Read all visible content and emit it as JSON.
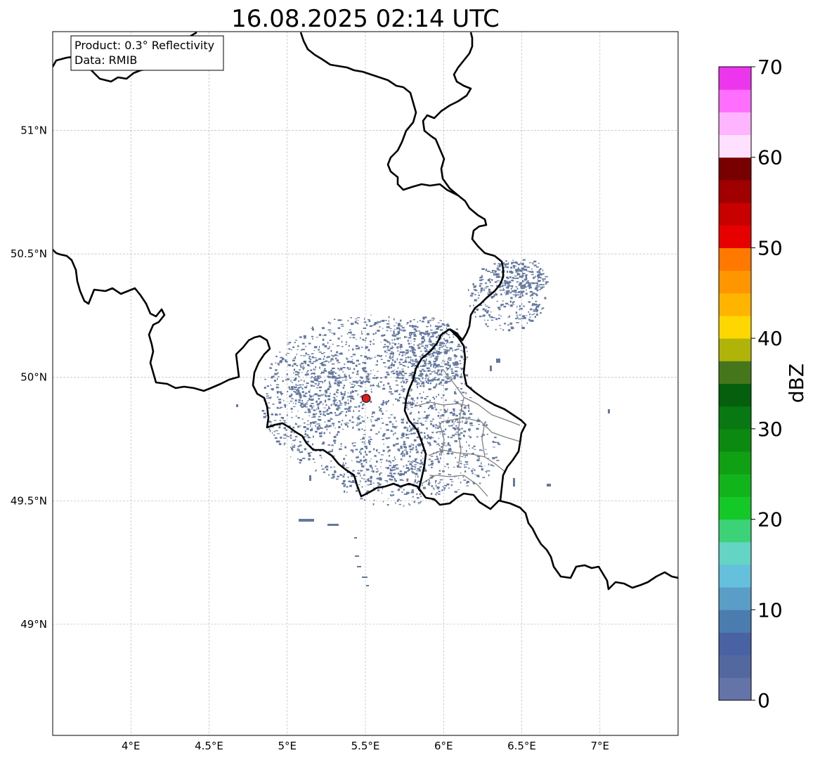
{
  "title": "16.08.2025 02:14 UTC",
  "info": {
    "product": "Product: 0.3° Reflectivity",
    "source": "Data: RMIB"
  },
  "map_extent": {
    "lon_min": 3.5,
    "lon_max": 7.5,
    "lat_min": 48.55,
    "lat_max": 51.4
  },
  "longitude_ticks": [
    {
      "value": 4.0,
      "label": "4°E"
    },
    {
      "value": 4.5,
      "label": "4.5°E"
    },
    {
      "value": 5.0,
      "label": "5°E"
    },
    {
      "value": 5.5,
      "label": "5.5°E"
    },
    {
      "value": 6.0,
      "label": "6°E"
    },
    {
      "value": 6.5,
      "label": "6.5°E"
    },
    {
      "value": 7.0,
      "label": "7°E"
    }
  ],
  "latitude_ticks": [
    {
      "value": 51.0,
      "label": "51°N"
    },
    {
      "value": 50.5,
      "label": "50.5°N"
    },
    {
      "value": 50.0,
      "label": "50°N"
    },
    {
      "value": 49.5,
      "label": "49.5°N"
    },
    {
      "value": 49.0,
      "label": "49°N"
    }
  ],
  "radar_site": {
    "lon": 5.505,
    "lat": 49.915,
    "color": "#e41a1c"
  },
  "echo_color": "#64789f",
  "colorbar": {
    "unit": "dBZ",
    "min": 0,
    "max": 70,
    "step": 2.5,
    "ticks": [
      {
        "value": 0,
        "label": "0"
      },
      {
        "value": 10,
        "label": "10"
      },
      {
        "value": 20,
        "label": "20"
      },
      {
        "value": 30,
        "label": "30"
      },
      {
        "value": 40,
        "label": "40"
      },
      {
        "value": 50,
        "label": "50"
      },
      {
        "value": 60,
        "label": "60"
      },
      {
        "value": 70,
        "label": "70"
      }
    ],
    "colors": [
      "#6474a8",
      "#5468a0",
      "#4862a3",
      "#4a7cb0",
      "#5a9ec8",
      "#64c0dc",
      "#64d4c4",
      "#3cd278",
      "#14c828",
      "#12b41c",
      "#10a014",
      "#0c8a10",
      "#087812",
      "#04600c",
      "#46761c",
      "#b0b408",
      "#ffd700",
      "#ffb400",
      "#ff9600",
      "#ff7800",
      "#e60000",
      "#c80000",
      "#a00000",
      "#780000",
      "#ffe0ff",
      "#ffb4ff",
      "#ff6eff",
      "#ee35ee"
    ]
  }
}
